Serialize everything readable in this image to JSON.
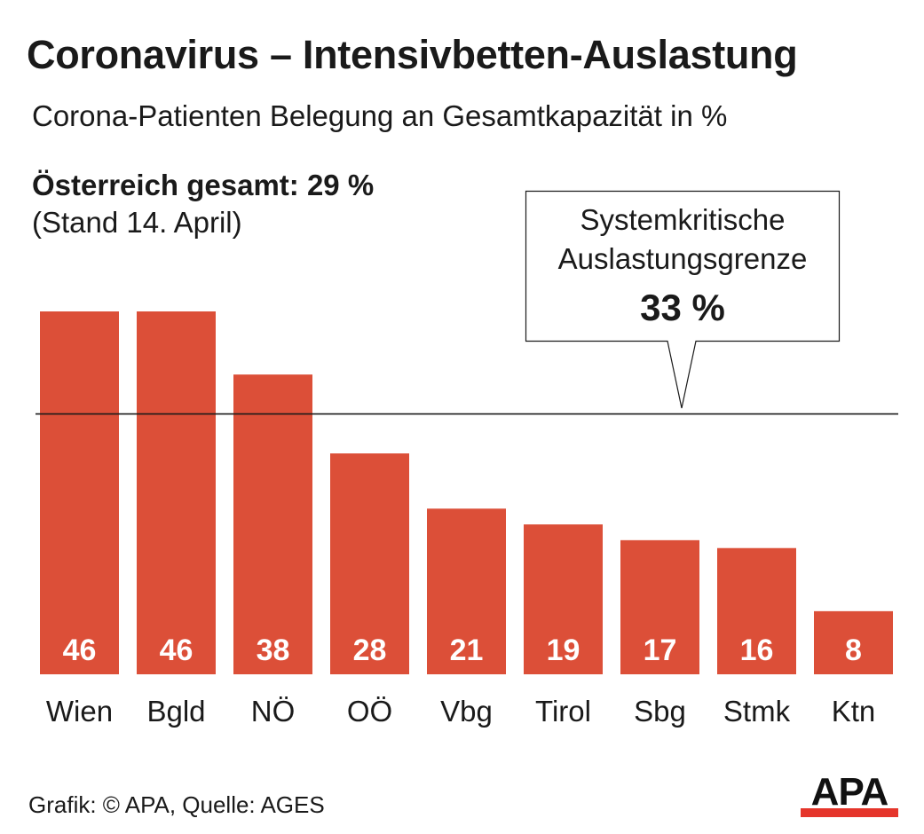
{
  "header": {
    "title": "Coronavirus – Intensivbetten-Auslastung",
    "subtitle": "Corona-Patienten Belegung an Gesamtkapazität in %",
    "total": "Österreich gesamt: 29 %",
    "stand": "(Stand 14. April)"
  },
  "callout": {
    "line1": "Systemkritische",
    "line2": "Auslastungsgrenze",
    "value": "33 %"
  },
  "footer": {
    "credit": "Grafik: © APA, Quelle: AGES",
    "logo": "APA"
  },
  "colors": {
    "bar": "#dc4f38",
    "bar_label": "#ffffff",
    "threshold_line": "#1a1a1a",
    "logo_accent": "#e5352b"
  },
  "chart_data": {
    "type": "bar",
    "categories": [
      "Wien",
      "Bgld",
      "NÖ",
      "OÖ",
      "Vbg",
      "Tirol",
      "Sbg",
      "Stmk",
      "Ktn"
    ],
    "values": [
      46,
      46,
      38,
      28,
      21,
      19,
      17,
      16,
      8
    ],
    "value_labels": [
      "46",
      "46",
      "38",
      "28",
      "21",
      "19",
      "17",
      "16",
      "8"
    ],
    "threshold": 33,
    "ylim": [
      0,
      46
    ],
    "grid": false,
    "legend": "none"
  }
}
